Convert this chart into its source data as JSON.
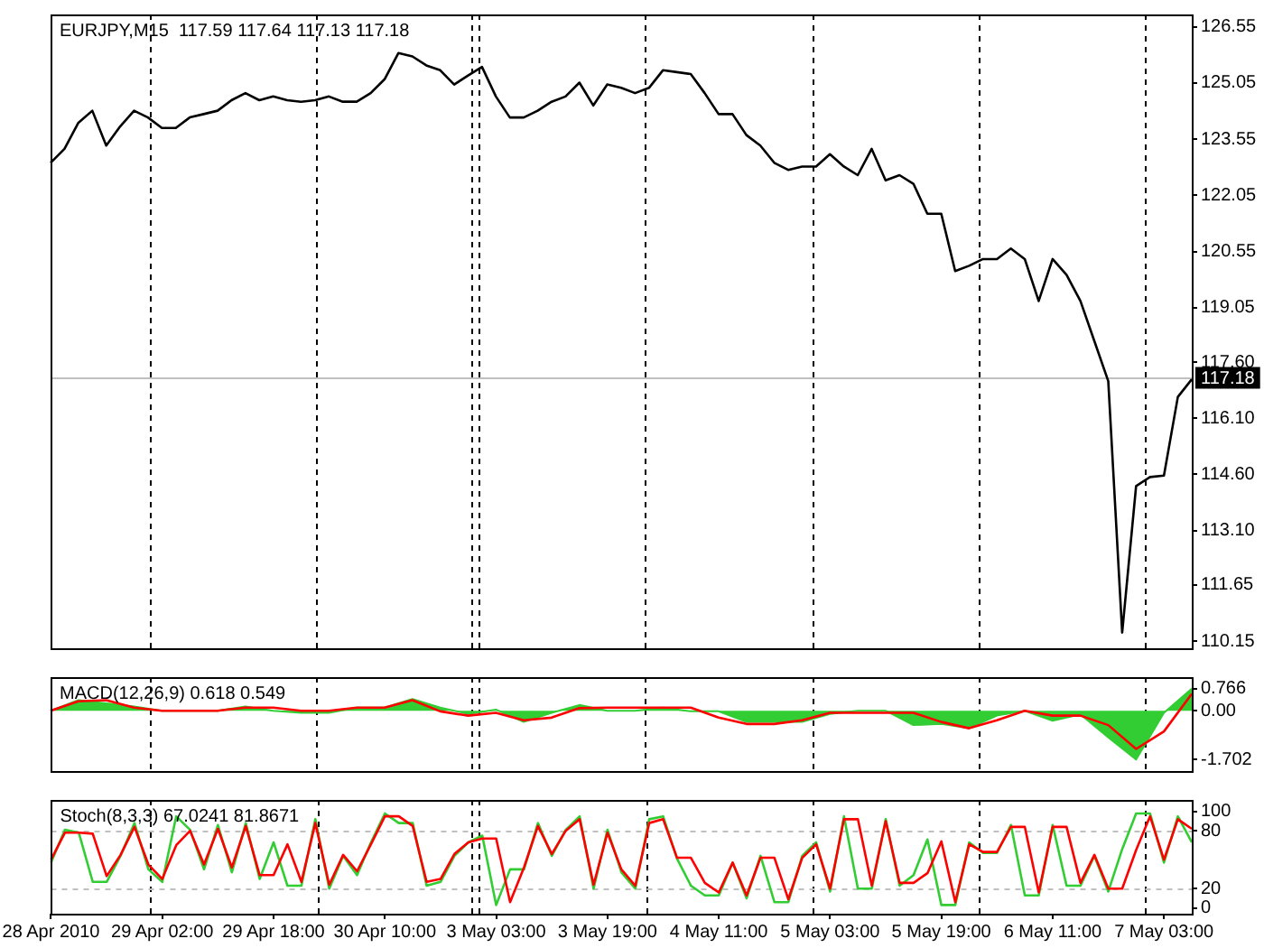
{
  "chart_data": [
    {
      "type": "line",
      "title": "EURJPY,M15  117.59 117.64 117.13 117.18",
      "tick_labels": "y",
      "categories": [
        null,
        null,
        null,
        null,
        null,
        null,
        null,
        null,
        null,
        null,
        null,
        null,
        null,
        null,
        null,
        null,
        null,
        null,
        null,
        null,
        null,
        null,
        null,
        null,
        null,
        null,
        null,
        null,
        null,
        null,
        null,
        null,
        null,
        null,
        null,
        null,
        null,
        null,
        null,
        null,
        null,
        null,
        null,
        null,
        null,
        null,
        null,
        null,
        null,
        null,
        null,
        null,
        null,
        null,
        null,
        null,
        null,
        null,
        null,
        null,
        null,
        null,
        null,
        null,
        null,
        null,
        null,
        null,
        null,
        null,
        null,
        null,
        null,
        null,
        null,
        null,
        null,
        null,
        null,
        null,
        null,
        null,
        null
      ],
      "ylim": [
        109.96,
        126.88
      ],
      "yticks": [
        110.15,
        111.65,
        {
          "value": 113.1,
          "label": "113.10"
        },
        {
          "value": 114.6,
          "label": "114.60"
        },
        {
          "value": 116.1,
          "label": "116.10"
        },
        {
          "value": 117.6,
          "label": "117.60"
        },
        119.05,
        120.55,
        122.05,
        123.55,
        125.05,
        126.55
      ],
      "series": [
        {
          "color": "#000000",
          "values": [
            122.92,
            123.29,
            123.99,
            124.31,
            123.38,
            123.89,
            124.31,
            124.13,
            123.85,
            123.85,
            124.13,
            124.22,
            124.31,
            124.59,
            124.78,
            124.59,
            124.69,
            124.59,
            124.55,
            124.59,
            124.69,
            124.55,
            124.55,
            124.78,
            125.15,
            125.85,
            125.76,
            125.52,
            125.39,
            125.01,
            125.25,
            125.48,
            124.69,
            124.13,
            124.13,
            124.31,
            124.55,
            124.69,
            125.06,
            124.45,
            125.01,
            124.92,
            124.78,
            124.92,
            125.39,
            125.34,
            125.29,
            124.78,
            124.22,
            124.22,
            123.66,
            123.38,
            122.92,
            122.73,
            122.82,
            122.82,
            123.15,
            122.82,
            122.59,
            123.29,
            122.45,
            122.59,
            122.36,
            121.56,
            121.56,
            120.03,
            120.17,
            120.35,
            120.35,
            120.63,
            120.35,
            119.23,
            120.35,
            119.93,
            119.23,
            118.16,
            117.09,
            110.38,
            114.29,
            114.53,
            114.57,
            116.67,
            117.14
          ]
        }
      ],
      "ref_lines": [
        {
          "axis": "y",
          "value": 117.18,
          "label": "117.18",
          "color": "#c0c0c0",
          "line_style": "solid"
        }
      ]
    },
    {
      "type": "area",
      "title": "MACD(12,26,9) 0.618 0.549",
      "tick_labels": "y",
      "categories": [
        null,
        null,
        null,
        null,
        null,
        null,
        null,
        null,
        null,
        null,
        null,
        null,
        null,
        null,
        null,
        null,
        null,
        null,
        null,
        null,
        null,
        null,
        null,
        null,
        null,
        null,
        null,
        null,
        null,
        null,
        null,
        null,
        null,
        null,
        null,
        null,
        null,
        null,
        null,
        null,
        null,
        null
      ],
      "ylim": [
        -2.1,
        1.17
      ],
      "yticks": [
        -1.702,
        {
          "value": 0,
          "label": "0.00"
        },
        0.766
      ],
      "series": [
        {
          "color": "#32cd32",
          "values": [
            0,
            0.37,
            0.26,
            0.15,
            0,
            0,
            0,
            0.15,
            0,
            -0.07,
            -0.07,
            0.11,
            0.11,
            0.41,
            0.11,
            -0.11,
            0.04,
            -0.39,
            -0.07,
            0.2,
            0,
            0,
            0.11,
            -0.02,
            -0.02,
            -0.39,
            -0.39,
            -0.39,
            -0.11,
            0,
            0,
            -0.5,
            -0.46,
            -0.61,
            -0.17,
            0,
            -0.35,
            -0.13,
            -0.93,
            -1.702,
            -0.07,
            0.766
          ]
        },
        {
          "type": "line",
          "color": "#ff0000",
          "values": [
            0,
            0.33,
            0.37,
            0.11,
            0,
            0,
            0,
            0.11,
            0.11,
            0,
            0,
            0.11,
            0.11,
            0.37,
            -0.02,
            -0.17,
            -0.07,
            -0.33,
            -0.24,
            0.09,
            0.11,
            0.11,
            0.11,
            0.11,
            -0.24,
            -0.46,
            -0.46,
            -0.33,
            -0.07,
            -0.07,
            -0.07,
            -0.07,
            -0.39,
            -0.61,
            -0.33,
            0,
            -0.17,
            -0.17,
            -0.5,
            -1.33,
            -0.72,
            0.59
          ]
        }
      ]
    },
    {
      "type": "line",
      "title": "Stoch(8,3,3) 67.0241 81.8671",
      "categories": [
        "28 Apr 2010",
        null,
        null,
        null,
        null,
        null,
        null,
        null,
        "29 Apr 02:00",
        null,
        null,
        null,
        null,
        null,
        null,
        null,
        "29 Apr 18:00",
        null,
        null,
        null,
        null,
        null,
        null,
        null,
        "30 Apr 10:00",
        null,
        null,
        null,
        null,
        null,
        null,
        null,
        "3 May 03:00",
        null,
        null,
        null,
        null,
        null,
        null,
        null,
        "3 May 19:00",
        null,
        null,
        null,
        null,
        null,
        null,
        null,
        "4 May 11:00",
        null,
        null,
        null,
        null,
        null,
        null,
        null,
        "5 May 03:00",
        null,
        null,
        null,
        null,
        null,
        null,
        null,
        "5 May 19:00",
        null,
        null,
        null,
        null,
        null,
        null,
        null,
        "6 May 11:00",
        null,
        null,
        null,
        null,
        null,
        null,
        null,
        "7 May 03:00",
        null,
        null
      ],
      "ylim": [
        -6,
        112
      ],
      "yticks": [
        0,
        20,
        80,
        100
      ],
      "series": [
        {
          "color": "#32cd32",
          "values": [
            47,
            81,
            78,
            27,
            27,
            54,
            88,
            40,
            27,
            95,
            81,
            40,
            86,
            37,
            88,
            30,
            68,
            23,
            23,
            92,
            20,
            54,
            34,
            68,
            98,
            88,
            88,
            23,
            27,
            54,
            68,
            75,
            3,
            40,
            40,
            88,
            54,
            81,
            95,
            20,
            81,
            37,
            20,
            92,
            95,
            51,
            23,
            13,
            13,
            47,
            10,
            54,
            6,
            6,
            54,
            68,
            17,
            95,
            20,
            20,
            92,
            23,
            34,
            71,
            3,
            3,
            68,
            57,
            57,
            86,
            13,
            13,
            86,
            23,
            23,
            54,
            17,
            61,
            98,
            98,
            47,
            95,
            68
          ]
        },
        {
          "color": "#ff0000",
          "values": [
            50,
            78,
            78,
            77,
            33,
            55,
            84,
            45,
            30,
            65,
            80,
            45,
            82,
            42,
            85,
            34,
            34,
            66,
            27,
            88,
            24,
            55,
            38,
            66,
            95,
            95,
            85,
            27,
            30,
            56,
            68,
            72,
            72,
            6,
            42,
            85,
            56,
            80,
            92,
            24,
            78,
            40,
            23,
            88,
            92,
            52,
            52,
            26,
            16,
            47,
            13,
            52,
            52,
            9,
            52,
            66,
            20,
            92,
            92,
            23,
            90,
            26,
            26,
            36,
            69,
            6,
            66,
            58,
            58,
            84,
            84,
            16,
            84,
            84,
            26,
            55,
            20,
            20,
            60,
            95,
            50,
            92,
            82
          ]
        }
      ],
      "ref_lines": [
        {
          "axis": "y",
          "value": 20,
          "color": "#c0c0c0",
          "line_style": "dashed"
        },
        {
          "axis": "y",
          "value": 80,
          "color": "#c0c0c0",
          "line_style": "dashed"
        }
      ]
    }
  ]
}
